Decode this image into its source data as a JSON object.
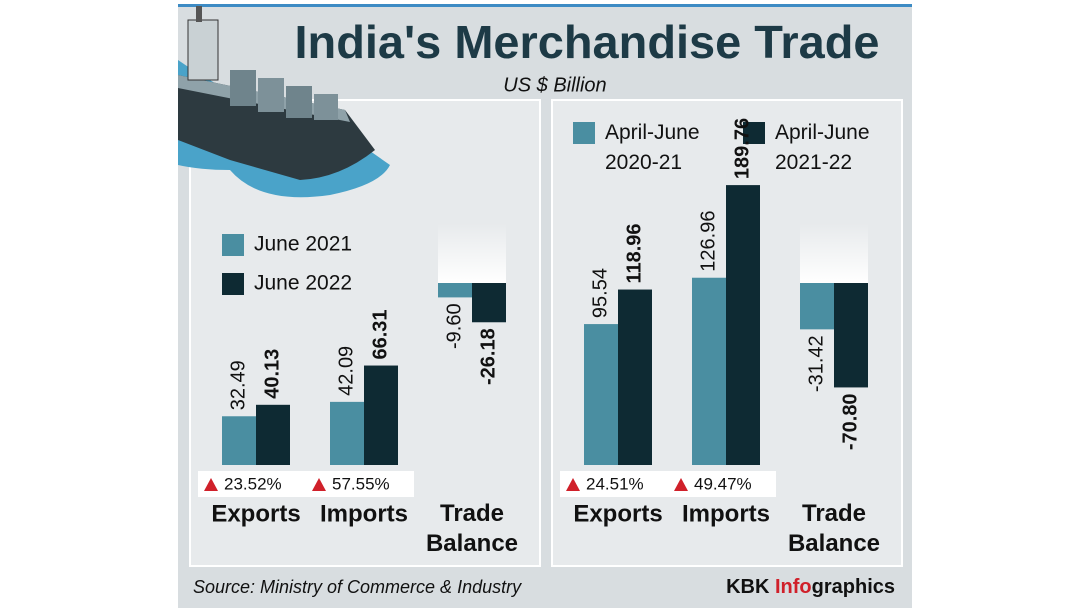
{
  "title": "India's Merchandise Trade",
  "subtitle": "US $ Billion",
  "source": "Source: Ministry of Commerce & Industry",
  "credit": [
    "KBK",
    "Info",
    "graphics"
  ],
  "chart_data": [
    {
      "type": "bar",
      "categories": [
        "Exports",
        "Imports",
        "Trade Balance"
      ],
      "series": [
        {
          "name": "June 2021",
          "color": "#4a8ea1",
          "values": [
            32.49,
            42.09,
            -9.6
          ],
          "value_labels": [
            "32.49",
            "42.09",
            "-9.60"
          ]
        },
        {
          "name": "June 2022",
          "color": "#0e2a33",
          "values": [
            40.13,
            66.31,
            -26.18
          ],
          "value_labels": [
            "40.13",
            "66.31",
            "-26.18"
          ]
        }
      ],
      "changes": [
        "23.52%",
        "57.55%"
      ]
    },
    {
      "type": "bar",
      "categories": [
        "Exports",
        "Imports",
        "Trade Balance"
      ],
      "series": [
        {
          "name": "April-June 2020-21",
          "color": "#4a8ea1",
          "values": [
            95.54,
            126.96,
            -31.42
          ],
          "value_labels": [
            "95.54",
            "126.96",
            "-31.42"
          ]
        },
        {
          "name": "April-June 2021-22",
          "color": "#0e2a33",
          "values": [
            118.96,
            189.76,
            -70.8
          ],
          "value_labels": [
            "118.96",
            "189.76",
            "-70.80"
          ]
        }
      ],
      "changes": [
        "24.51%",
        "49.47%"
      ]
    }
  ]
}
